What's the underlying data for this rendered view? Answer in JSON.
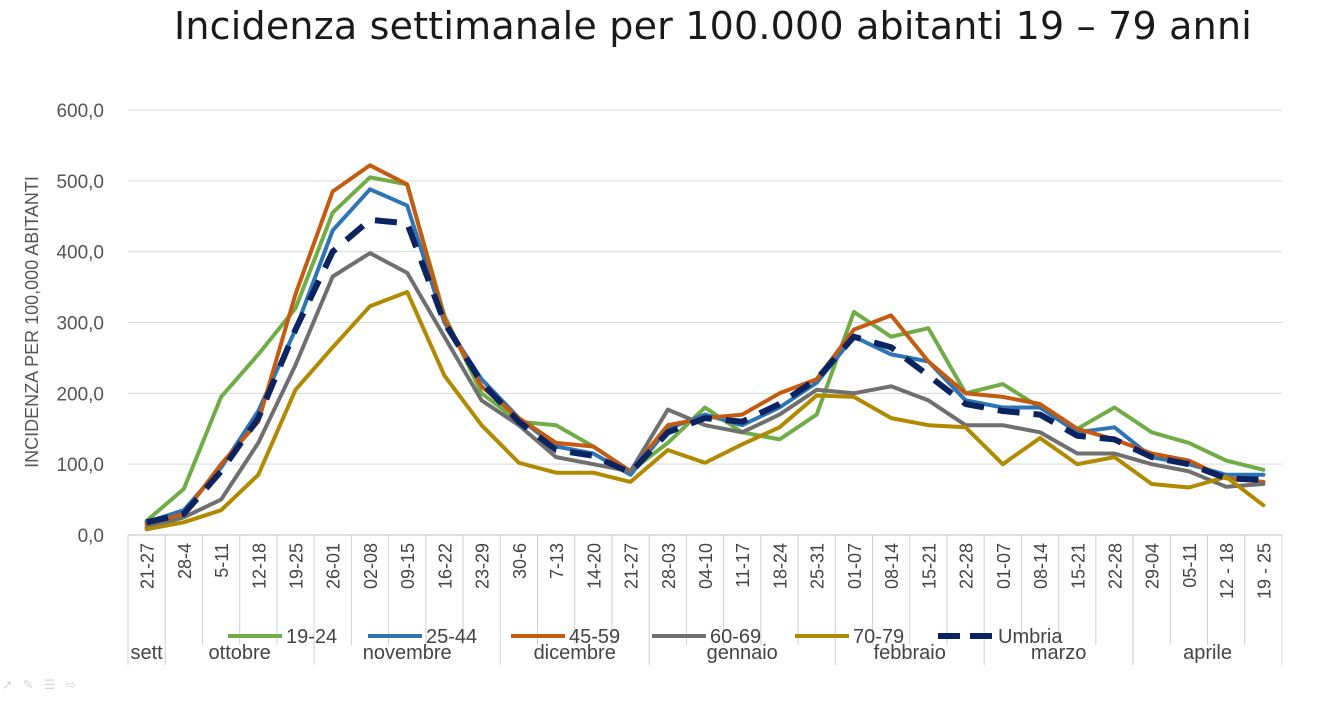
{
  "chart_data": {
    "type": "line",
    "title": "Incidenza settimanale per 100.000 abitanti 19 – 79 anni",
    "ylabel": "INCIDENZA PER 100,000 ABITANTI",
    "xlabel": "",
    "ylim": [
      0,
      600
    ],
    "yticks": [
      0,
      100,
      200,
      300,
      400,
      500,
      600
    ],
    "ytick_labels": [
      "0,0",
      "100,0",
      "200,0",
      "300,0",
      "400,0",
      "500,0",
      "600,0"
    ],
    "grid": true,
    "legend_position": "bottom",
    "categories": [
      "21-27",
      "28-4",
      "5-11",
      "12-18",
      "19-25",
      "26-01",
      "02-08",
      "09-15",
      "16-22",
      "23-29",
      "30-6",
      "7-13",
      "14-20",
      "21-27",
      "28-03",
      "04-10",
      "11-17",
      "18-24",
      "25-31",
      "01-07",
      "08-14",
      "15-21",
      "22-28",
      "01-07",
      "08-14",
      "15-21",
      "22-28",
      "29-04",
      "05-11",
      "12 - 18",
      "19 - 25"
    ],
    "month_groups": [
      {
        "label": "sett",
        "start": 0,
        "end": 0
      },
      {
        "label": "ottobre",
        "start": 1,
        "end": 4
      },
      {
        "label": "novembre",
        "start": 5,
        "end": 9
      },
      {
        "label": "dicembre",
        "start": 10,
        "end": 13
      },
      {
        "label": "gennaio",
        "start": 14,
        "end": 18
      },
      {
        "label": "febbraio",
        "start": 19,
        "end": 22
      },
      {
        "label": "marzo",
        "start": 23,
        "end": 26
      },
      {
        "label": "aprile",
        "start": 27,
        "end": 30
      }
    ],
    "series": [
      {
        "name": "19-24",
        "color": "#70ad47",
        "dashed": false,
        "values": [
          20,
          65,
          195,
          255,
          320,
          455,
          505,
          495,
          310,
          200,
          160,
          155,
          125,
          90,
          130,
          180,
          145,
          135,
          170,
          315,
          280,
          292,
          200,
          213,
          180,
          150,
          180,
          145,
          130,
          105,
          92
        ]
      },
      {
        "name": "25-44",
        "color": "#2e75b6",
        "dashed": false,
        "values": [
          18,
          35,
          95,
          175,
          290,
          430,
          488,
          465,
          300,
          220,
          165,
          125,
          115,
          85,
          150,
          170,
          155,
          180,
          215,
          280,
          255,
          245,
          190,
          180,
          180,
          145,
          152,
          110,
          100,
          85,
          85
        ]
      },
      {
        "name": "45-59",
        "color": "#c55a11",
        "dashed": false,
        "values": [
          15,
          30,
          100,
          160,
          340,
          485,
          522,
          495,
          305,
          210,
          165,
          130,
          125,
          90,
          155,
          165,
          170,
          200,
          220,
          290,
          310,
          245,
          200,
          195,
          185,
          150,
          135,
          115,
          105,
          80,
          75
        ]
      },
      {
        "name": "60-69",
        "color": "#6f6f6f",
        "dashed": false,
        "values": [
          10,
          25,
          50,
          130,
          240,
          365,
          398,
          370,
          280,
          190,
          155,
          110,
          100,
          90,
          177,
          155,
          145,
          170,
          205,
          200,
          210,
          190,
          155,
          155,
          145,
          115,
          115,
          100,
          90,
          68,
          72
        ]
      },
      {
        "name": "70-79",
        "color": "#b08a00",
        "dashed": false,
        "values": [
          8,
          18,
          35,
          85,
          205,
          265,
          323,
          343,
          225,
          155,
          102,
          88,
          88,
          75,
          120,
          102,
          128,
          152,
          197,
          195,
          165,
          155,
          152,
          100,
          137,
          100,
          110,
          72,
          67,
          82,
          42
        ]
      },
      {
        "name": "Umbria",
        "color": "#0b2461",
        "dashed": true,
        "values": [
          18,
          30,
          90,
          165,
          290,
          400,
          445,
          440,
          300,
          215,
          160,
          120,
          112,
          88,
          145,
          165,
          160,
          185,
          220,
          280,
          265,
          225,
          185,
          175,
          170,
          140,
          135,
          110,
          100,
          80,
          78
        ]
      }
    ]
  },
  "toolbar_icons": [
    "pointer-icon",
    "pen-icon",
    "menu-icon",
    "arrow-icon"
  ]
}
